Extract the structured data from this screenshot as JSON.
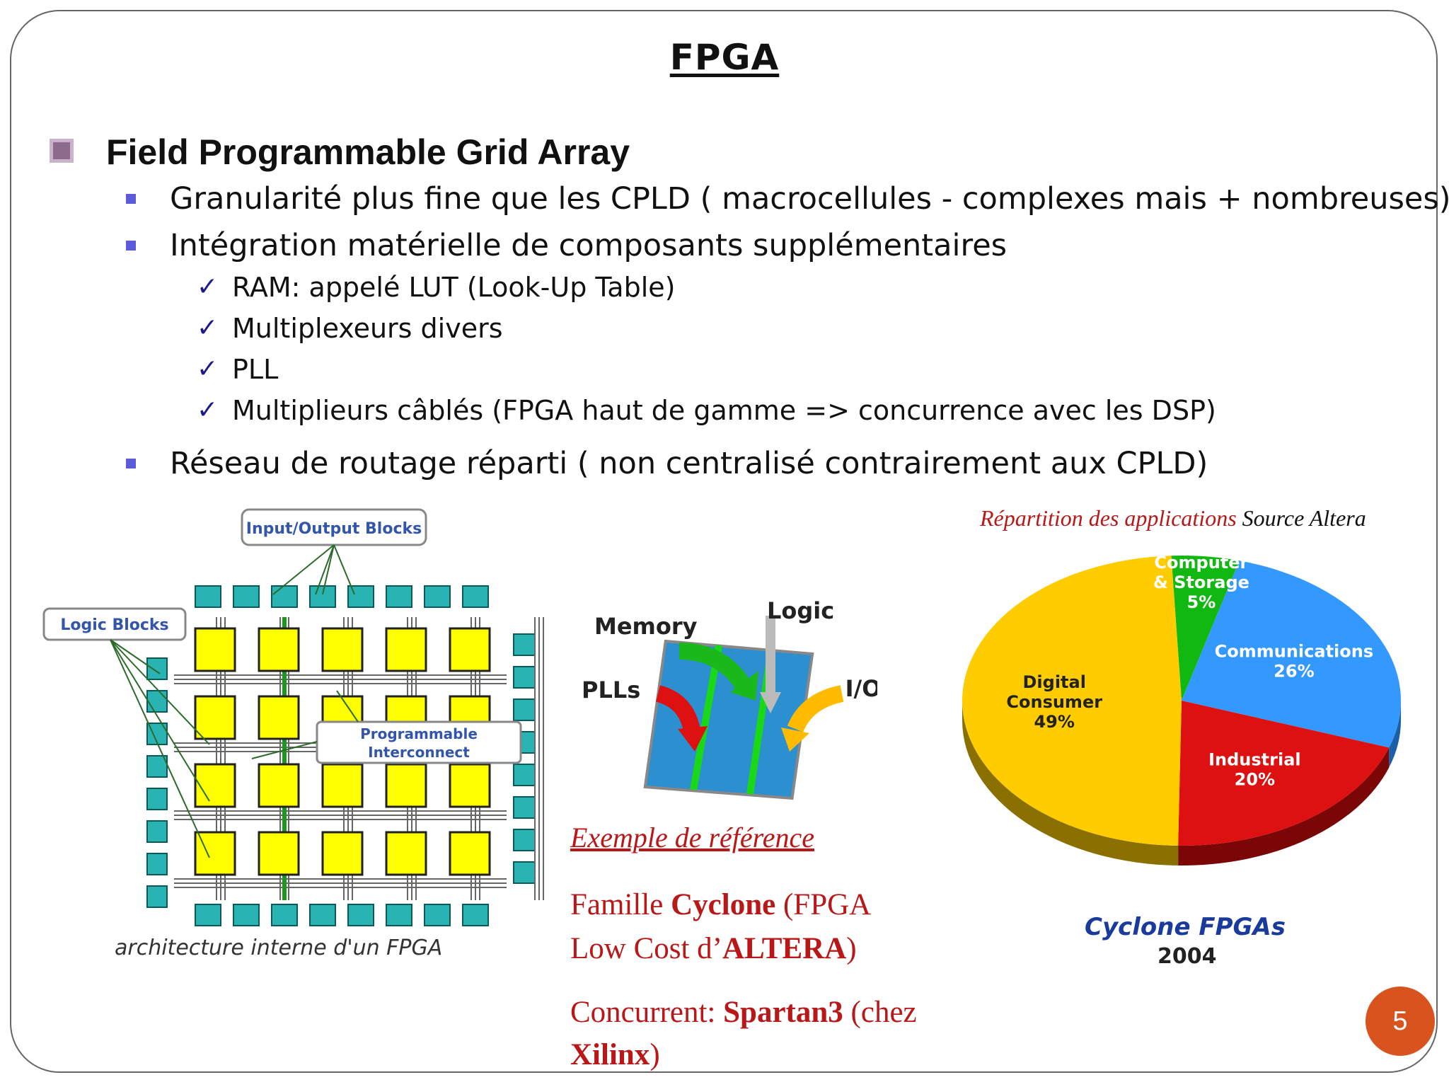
{
  "slide": {
    "title": "FPGA",
    "page_number": "5"
  },
  "bullets": {
    "heading": "Field Programmable Grid Array",
    "items": [
      "Granularité plus fine que les CPLD ( macrocellules - complexes mais + nombreuses)",
      "Intégration matérielle de composants supplémentaires"
    ],
    "sub_items": [
      "RAM: appelé LUT (Look-Up Table)",
      "Multiplexeurs divers",
      "PLL",
      "Multiplieurs câblés (FPGA haut de gamme => concurrence avec les DSP)"
    ],
    "last_item": "Réseau de routage réparti ( non centralisé contrairement aux CPLD)"
  },
  "arch_diagram": {
    "io_label": "Input/Output Blocks",
    "logic_label": "Logic Blocks",
    "interconnect_label_1": "Programmable",
    "interconnect_label_2": "Interconnect",
    "caption": "architecture interne d'un FPGA"
  },
  "chip_diagram": {
    "memory": "Memory",
    "logic": "Logic",
    "plls": "PLLs",
    "io": "I/O"
  },
  "reference": {
    "heading": "Exemple de référence",
    "family_prefix": "Famille ",
    "family_name": "Cyclone",
    "family_suffix": " (FPGA",
    "line2_prefix": "Low Cost d’",
    "line2_brand": "ALTERA",
    "line2_suffix": ")",
    "competitor_prefix": "Concurrent: ",
    "competitor_name": "Spartan3",
    "competitor_suffix": "  (chez",
    "competitor_line2_name": "Xilinx",
    "competitor_line2_suffix": ")"
  },
  "pie": {
    "source_red": "Répartition des applications",
    "source_black": " Source Altera",
    "product": "Cyclone FPGAs",
    "year": "2004"
  },
  "chart_data": {
    "type": "pie",
    "title": "Répartition des applications",
    "slices": [
      {
        "label_1": "Computer",
        "label_2": "& Storage",
        "percent_label": "5%",
        "value": 5,
        "color": "#12b812"
      },
      {
        "label_1": "Communications",
        "label_2": "",
        "percent_label": "26%",
        "value": 26,
        "color": "#3399ff"
      },
      {
        "label_1": "Industrial",
        "label_2": "",
        "percent_label": "20%",
        "value": 20,
        "color": "#dd1111"
      },
      {
        "label_1": "Digital",
        "label_2": "Consumer",
        "percent_label": "49%",
        "value": 49,
        "color": "#ffcc00"
      }
    ]
  }
}
